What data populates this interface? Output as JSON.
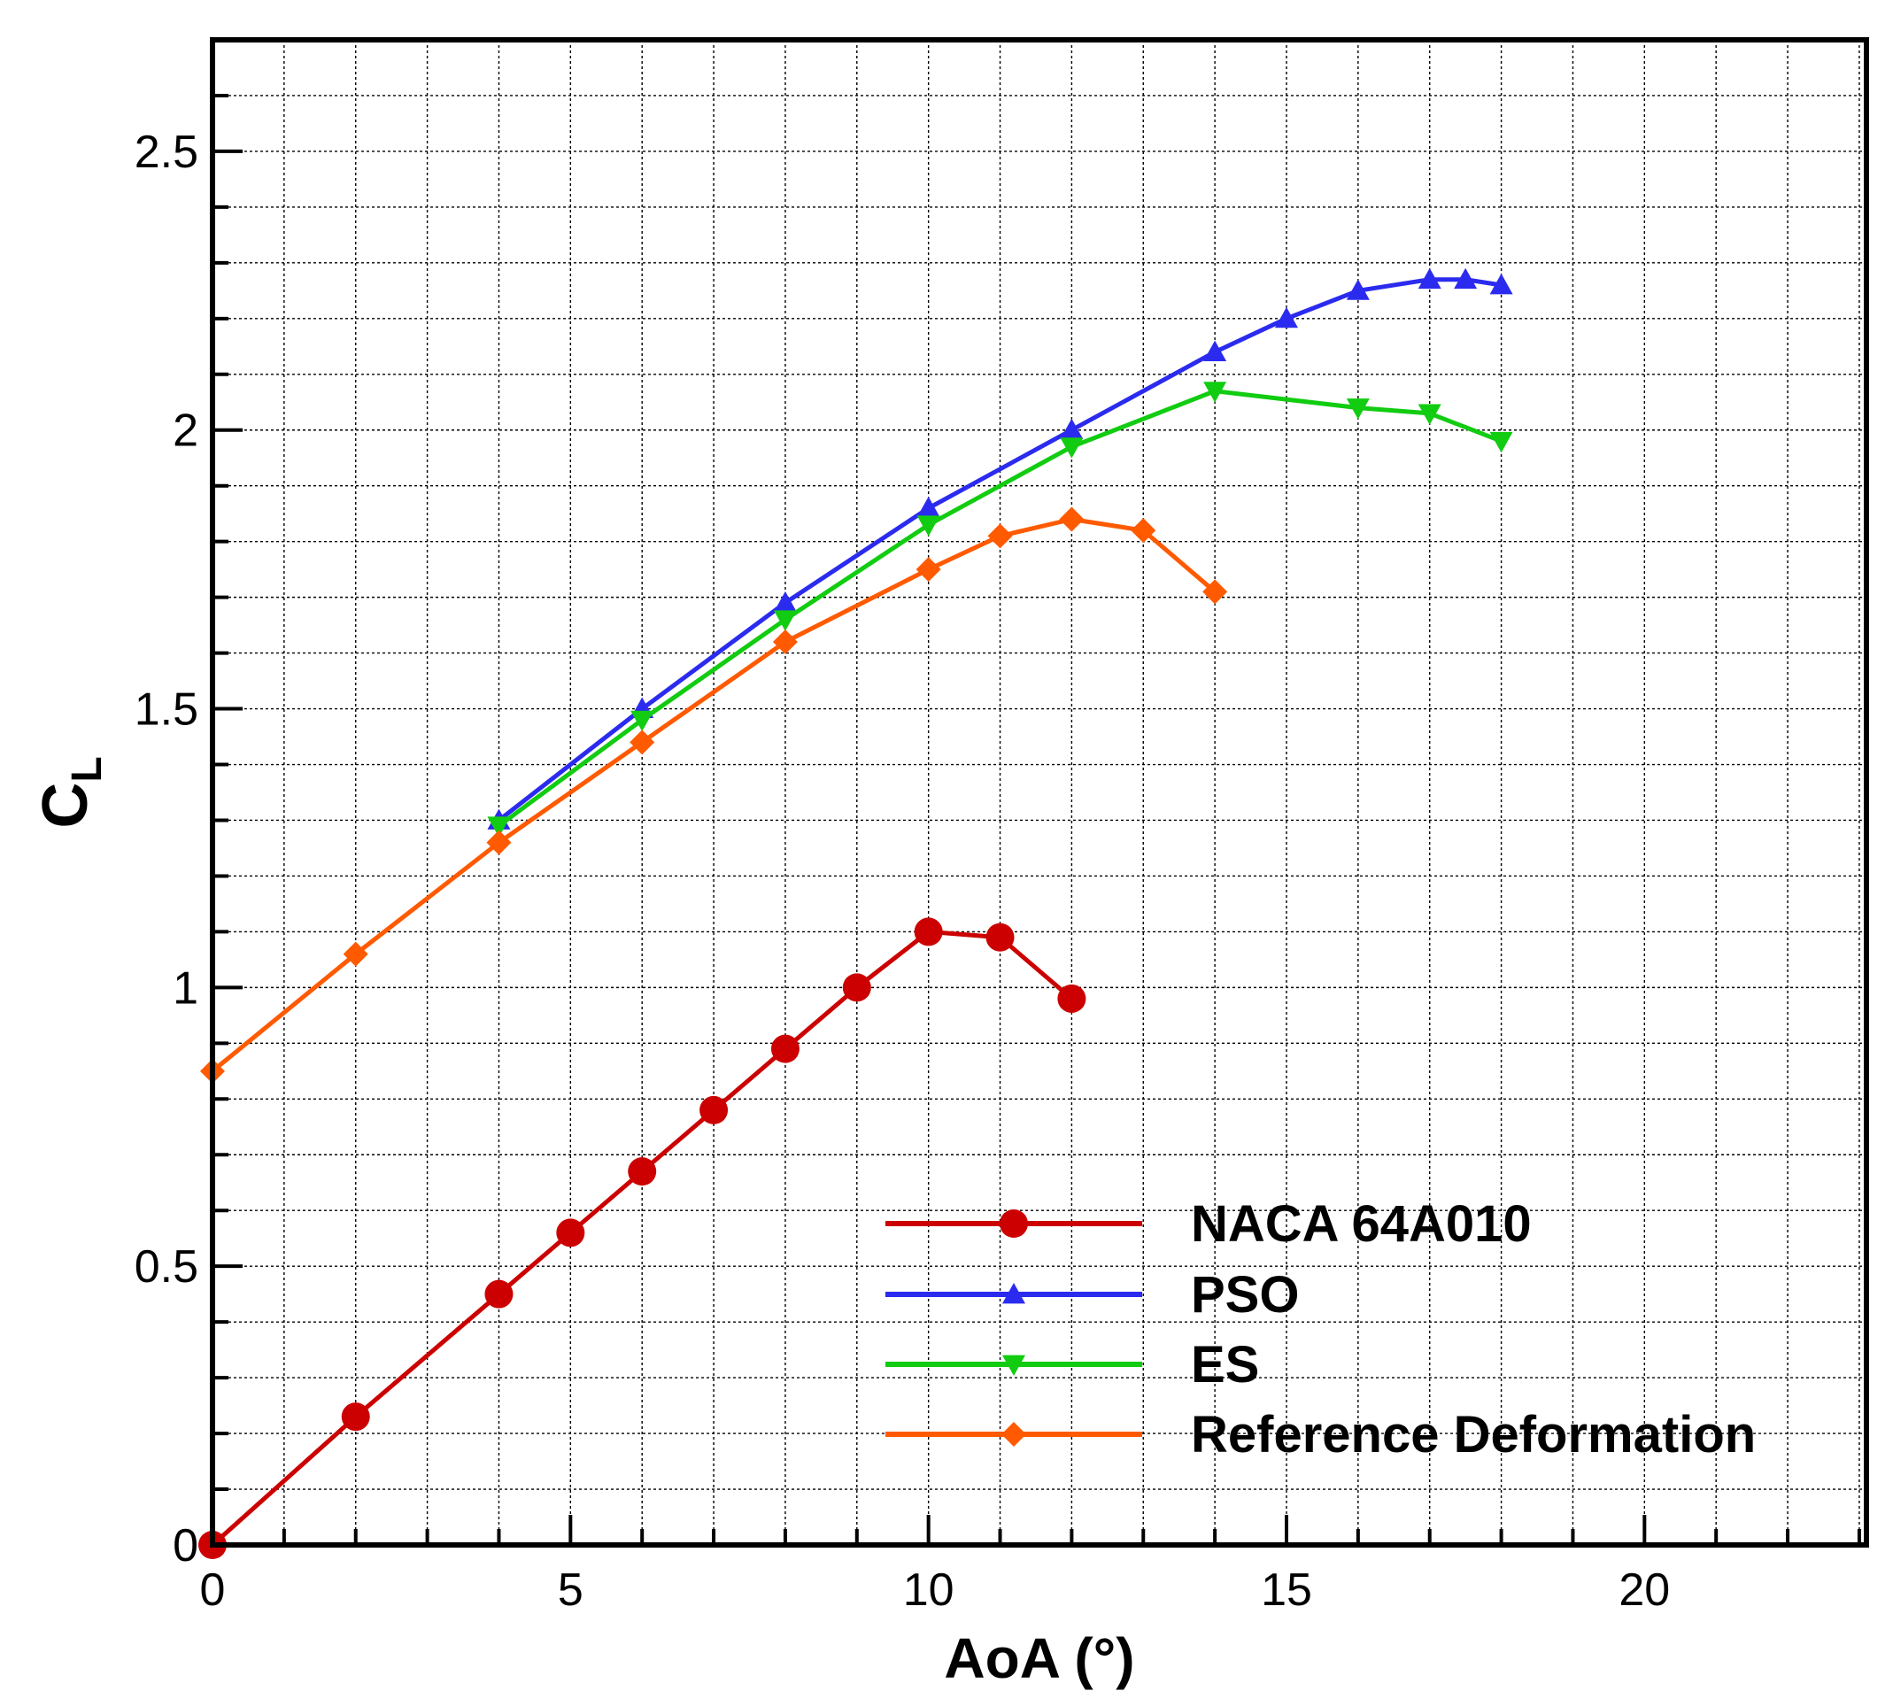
{
  "chart_data": {
    "type": "line",
    "xlabel": "AoA (°)",
    "ylabel": "C_L",
    "ylabel_main": "C",
    "ylabel_sub": "L",
    "xlim": [
      0,
      23.1
    ],
    "ylim": [
      0,
      2.7
    ],
    "x_ticks": [
      0,
      5,
      10,
      15,
      20
    ],
    "x_tick_labels": [
      "0",
      "5",
      "10",
      "15",
      "20"
    ],
    "y_ticks": [
      0,
      0.5,
      1,
      1.5,
      2,
      2.5
    ],
    "y_tick_labels": [
      "0",
      "0.5",
      "1",
      "1.5",
      "2",
      "2.5"
    ],
    "grid": true,
    "legend_position": "bottom-right",
    "series": [
      {
        "name": "NACA 64A010",
        "color": "#cc0000",
        "marker": "circle",
        "x": [
          0,
          2,
          4,
          5,
          6,
          7,
          8,
          9,
          10,
          11,
          12
        ],
        "y": [
          0.0,
          0.23,
          0.45,
          0.56,
          0.67,
          0.78,
          0.89,
          1.0,
          1.1,
          1.09,
          0.98
        ]
      },
      {
        "name": "PSO",
        "color": "#2b2bef",
        "marker": "triangle-up",
        "x": [
          4,
          6,
          8,
          10,
          12,
          14,
          15,
          16,
          17,
          17.5,
          18
        ],
        "y": [
          1.3,
          1.5,
          1.69,
          1.86,
          2.0,
          2.14,
          2.2,
          2.25,
          2.27,
          2.27,
          2.26
        ]
      },
      {
        "name": "ES",
        "color": "#11cc11",
        "marker": "triangle-down",
        "x": [
          4,
          6,
          8,
          10,
          12,
          14,
          16,
          17,
          18
        ],
        "y": [
          1.29,
          1.48,
          1.66,
          1.83,
          1.97,
          2.07,
          2.04,
          2.03,
          1.98
        ]
      },
      {
        "name": "Reference Deformation",
        "color": "#ff5a00",
        "marker": "diamond",
        "x": [
          0,
          2,
          4,
          6,
          8,
          10,
          11,
          12,
          13,
          14
        ],
        "y": [
          0.85,
          1.06,
          1.26,
          1.44,
          1.62,
          1.75,
          1.81,
          1.84,
          1.82,
          1.71
        ]
      }
    ]
  }
}
